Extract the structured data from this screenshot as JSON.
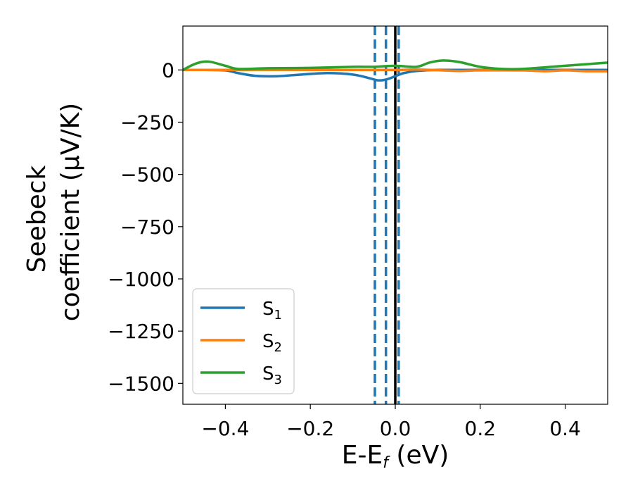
{
  "chart_data": {
    "type": "line",
    "title": "",
    "xlabel_main": "E-E",
    "xlabel_sub": "f",
    "xlabel_tail": " (eV)",
    "ylabel_line1": "Seebeck",
    "ylabel_line2": "coefficient  (μV/K)",
    "xlim": [
      -0.5,
      0.5
    ],
    "ylim": [
      -1600,
      210
    ],
    "xticks": [
      -0.4,
      -0.2,
      0.0,
      0.2,
      0.4
    ],
    "xtick_labels": [
      "−0.4",
      "−0.2",
      "0.0",
      "0.2",
      "0.4"
    ],
    "yticks": [
      0,
      -250,
      -500,
      -750,
      -1000,
      -1250,
      -1500
    ],
    "ytick_labels": [
      "0",
      "−250",
      "−500",
      "−750",
      "−1000",
      "−1250",
      "−1500"
    ],
    "legend_position": "lower-left",
    "series": [
      {
        "name": "S",
        "sub": "1",
        "color": "#1f77b4",
        "x": [
          -0.5,
          -0.45,
          -0.4,
          -0.37,
          -0.33,
          -0.28,
          -0.22,
          -0.16,
          -0.1,
          -0.06,
          -0.04,
          -0.02,
          0.0,
          0.02,
          0.05,
          0.1,
          0.2,
          0.3,
          0.4,
          0.5
        ],
        "y": [
          0,
          0,
          -2,
          -15,
          -28,
          -30,
          -22,
          -15,
          -22,
          -40,
          -50,
          -45,
          -30,
          -15,
          -5,
          0,
          0,
          0,
          0,
          0
        ]
      },
      {
        "name": "S",
        "sub": "2",
        "color": "#ff7f0e",
        "x": [
          -0.5,
          -0.4,
          -0.3,
          -0.2,
          -0.1,
          0.0,
          0.05,
          0.1,
          0.15,
          0.2,
          0.3,
          0.35,
          0.4,
          0.45,
          0.5
        ],
        "y": [
          0,
          0,
          0,
          0,
          0,
          0,
          2,
          -1,
          -5,
          -2,
          -2,
          -6,
          -2,
          -6,
          -6
        ]
      },
      {
        "name": "S",
        "sub": "3",
        "color": "#2ca02c",
        "x": [
          -0.5,
          -0.47,
          -0.44,
          -0.4,
          -0.37,
          -0.3,
          -0.2,
          -0.1,
          -0.05,
          0.0,
          0.05,
          0.08,
          0.11,
          0.15,
          0.2,
          0.25,
          0.3,
          0.4,
          0.5
        ],
        "y": [
          0,
          30,
          40,
          20,
          5,
          8,
          10,
          15,
          15,
          20,
          15,
          35,
          45,
          38,
          15,
          5,
          5,
          20,
          35
        ]
      }
    ],
    "vertical_lines": [
      {
        "x": -0.048,
        "color": "#1f77b4",
        "style": "dashed"
      },
      {
        "x": -0.022,
        "color": "#1f77b4",
        "style": "dashed"
      },
      {
        "x": 0.008,
        "color": "#1f77b4",
        "style": "dashed"
      },
      {
        "x": 0.0,
        "color": "#000000",
        "style": "solid"
      }
    ]
  }
}
